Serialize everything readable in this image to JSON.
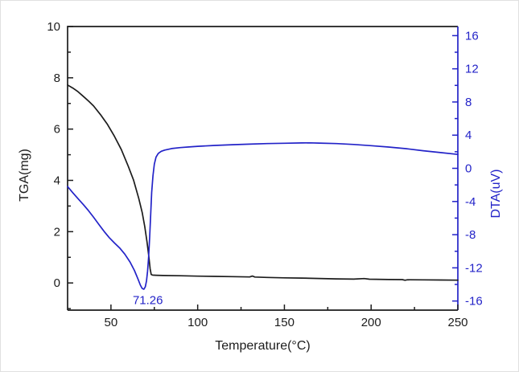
{
  "figure": {
    "background": "#ffffff",
    "axis_color": "#1c1c1c",
    "dta_color": "#2323c8"
  },
  "chart_data": {
    "type": "line",
    "title": "",
    "xlabel": "Temperature(°C)",
    "ylabel_left": "TGA(mg)",
    "ylabel_right": "DTA(uV)",
    "xlim": [
      25,
      250
    ],
    "ylim_left": [
      -1.06,
      10
    ],
    "ylim_right": [
      -17.1,
      17.1
    ],
    "grid": false,
    "legend": "none",
    "x_major_ticks": [
      50,
      100,
      150,
      200,
      250
    ],
    "x_minor_ticks": [
      75,
      125,
      175,
      225
    ],
    "y_left_major_ticks": [
      0,
      2,
      4,
      6,
      8,
      10
    ],
    "y_left_minor_ticks": [
      -1,
      1,
      3,
      5,
      7,
      9
    ],
    "y_right_major_ticks": [
      -16,
      -12,
      -8,
      -4,
      0,
      4,
      8,
      12,
      16
    ],
    "y_right_minor_ticks": [
      -14,
      -10,
      -6,
      -2,
      2,
      6,
      10,
      14
    ],
    "annotation": {
      "text": "71.26",
      "x": 71.26,
      "y_right": -16.35,
      "color": "#2323c8"
    },
    "series": [
      {
        "name": "TGA",
        "axis": "left",
        "color": "#1c1c1c",
        "points": [
          [
            25,
            7.72
          ],
          [
            28,
            7.6
          ],
          [
            31,
            7.46
          ],
          [
            34,
            7.28
          ],
          [
            37,
            7.1
          ],
          [
            40,
            6.9
          ],
          [
            44,
            6.56
          ],
          [
            48,
            6.18
          ],
          [
            52,
            5.72
          ],
          [
            56,
            5.2
          ],
          [
            60,
            4.55
          ],
          [
            63,
            4.02
          ],
          [
            66,
            3.3
          ],
          [
            68,
            2.75
          ],
          [
            69.5,
            2.2
          ],
          [
            70.8,
            1.6
          ],
          [
            71.8,
            1.05
          ],
          [
            72.6,
            0.55
          ],
          [
            73.2,
            0.33
          ],
          [
            74,
            0.305
          ],
          [
            76,
            0.3
          ],
          [
            80,
            0.29
          ],
          [
            90,
            0.28
          ],
          [
            100,
            0.265
          ],
          [
            110,
            0.255
          ],
          [
            120,
            0.245
          ],
          [
            130,
            0.235
          ],
          [
            131.5,
            0.27
          ],
          [
            133,
            0.23
          ],
          [
            140,
            0.215
          ],
          [
            150,
            0.2
          ],
          [
            160,
            0.19
          ],
          [
            170,
            0.175
          ],
          [
            180,
            0.16
          ],
          [
            190,
            0.15
          ],
          [
            196,
            0.17
          ],
          [
            199,
            0.145
          ],
          [
            210,
            0.135
          ],
          [
            218,
            0.13
          ],
          [
            219.5,
            0.105
          ],
          [
            221,
            0.125
          ],
          [
            230,
            0.12
          ],
          [
            240,
            0.115
          ],
          [
            250,
            0.11
          ]
        ]
      },
      {
        "name": "DTA",
        "axis": "right",
        "color": "#2323c8",
        "points": [
          [
            25,
            -2.2
          ],
          [
            28,
            -2.95
          ],
          [
            31,
            -3.65
          ],
          [
            34,
            -4.35
          ],
          [
            37,
            -5.1
          ],
          [
            40,
            -5.9
          ],
          [
            43,
            -6.75
          ],
          [
            46,
            -7.6
          ],
          [
            49,
            -8.35
          ],
          [
            52,
            -9.0
          ],
          [
            55,
            -9.6
          ],
          [
            58,
            -10.35
          ],
          [
            61,
            -11.3
          ],
          [
            63.5,
            -12.3
          ],
          [
            65.5,
            -13.3
          ],
          [
            67,
            -14.1
          ],
          [
            68,
            -14.48
          ],
          [
            69,
            -14.58
          ],
          [
            69.8,
            -14.28
          ],
          [
            70.5,
            -13.55
          ],
          [
            71.1,
            -12.4
          ],
          [
            71.7,
            -10.7
          ],
          [
            72.3,
            -8.3
          ],
          [
            72.9,
            -5.5
          ],
          [
            73.5,
            -2.9
          ],
          [
            74.2,
            -0.9
          ],
          [
            75,
            0.5
          ],
          [
            76,
            1.35
          ],
          [
            77.3,
            1.8
          ],
          [
            79,
            2.05
          ],
          [
            81,
            2.2
          ],
          [
            85,
            2.38
          ],
          [
            90,
            2.5
          ],
          [
            95,
            2.58
          ],
          [
            100,
            2.65
          ],
          [
            110,
            2.76
          ],
          [
            120,
            2.85
          ],
          [
            130,
            2.92
          ],
          [
            140,
            2.98
          ],
          [
            150,
            3.02
          ],
          [
            160,
            3.06
          ],
          [
            165,
            3.07
          ],
          [
            170,
            3.04
          ],
          [
            180,
            2.98
          ],
          [
            190,
            2.88
          ],
          [
            200,
            2.73
          ],
          [
            210,
            2.57
          ],
          [
            220,
            2.37
          ],
          [
            230,
            2.12
          ],
          [
            240,
            1.9
          ],
          [
            250,
            1.68
          ]
        ]
      }
    ]
  }
}
